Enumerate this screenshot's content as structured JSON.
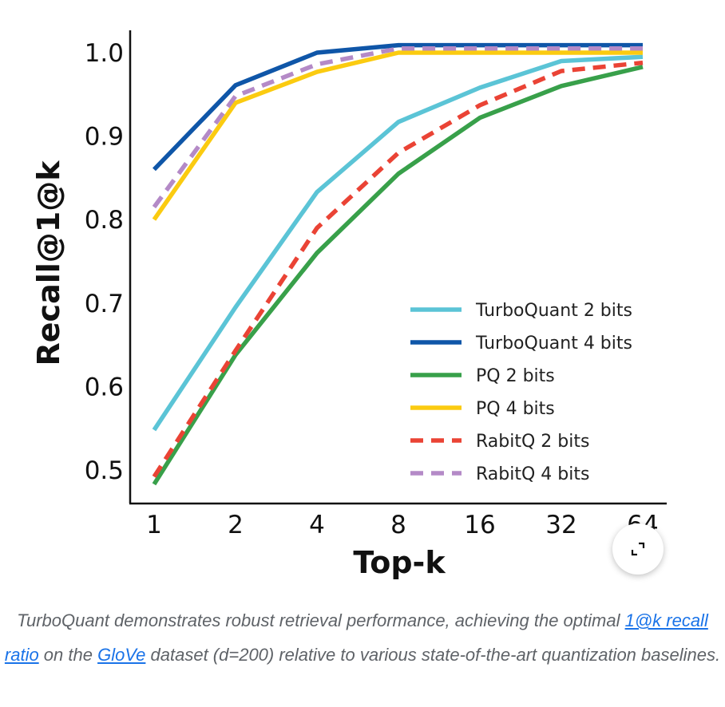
{
  "chart_data": {
    "type": "line",
    "title": "",
    "xlabel": "Top-k",
    "ylabel": "Recall@1@k",
    "categories": [
      "1",
      "2",
      "4",
      "8",
      "16",
      "32",
      "64"
    ],
    "ylim": [
      0.46,
      1.04
    ],
    "yticks": [
      0.5,
      0.6,
      0.7,
      0.8,
      0.9,
      1.0
    ],
    "ytick_labels": [
      "0.5",
      "0.6",
      "0.7",
      "0.8",
      "0.9",
      "1.0"
    ],
    "grid": false,
    "legend_position": "bottom-right",
    "series": [
      {
        "name": "TurboQuant 2 bits",
        "color": "#5bc4d6",
        "dash": false,
        "values": [
          0.548,
          0.695,
          0.833,
          0.917,
          0.958,
          0.99,
          0.995
        ]
      },
      {
        "name": "TurboQuant 4 bits",
        "color": "#0f56a8",
        "dash": false,
        "values": [
          0.86,
          0.961,
          1.0,
          1.009,
          1.009,
          1.009,
          1.009
        ]
      },
      {
        "name": "PQ 2 bits",
        "color": "#38a04a",
        "dash": false,
        "values": [
          0.483,
          0.638,
          0.76,
          0.855,
          0.922,
          0.96,
          0.983
        ]
      },
      {
        "name": "PQ 4 bits",
        "color": "#fbcb10",
        "dash": false,
        "values": [
          0.8,
          0.94,
          0.977,
          1.0,
          1.0,
          1.0,
          1.0
        ]
      },
      {
        "name": "RabitQ 2 bits",
        "color": "#ea4335",
        "dash": true,
        "values": [
          0.492,
          0.643,
          0.79,
          0.88,
          0.937,
          0.978,
          0.988
        ]
      },
      {
        "name": "RabitQ 4 bits",
        "color": "#b48ac7",
        "dash": true,
        "values": [
          0.815,
          0.948,
          0.986,
          1.005,
          1.005,
          1.005,
          1.005
        ]
      }
    ]
  },
  "caption": {
    "text_1": "TurboQuant demonstrates robust retrieval performance, achieving the optimal ",
    "link_1": "1@k recall ratio",
    "text_2": " on the ",
    "link_2": "GloVe",
    "text_3": " dataset (d=200) relative to various state-of-the-art quantization baselines."
  },
  "expand_button": {
    "icon": "expand-icon"
  }
}
